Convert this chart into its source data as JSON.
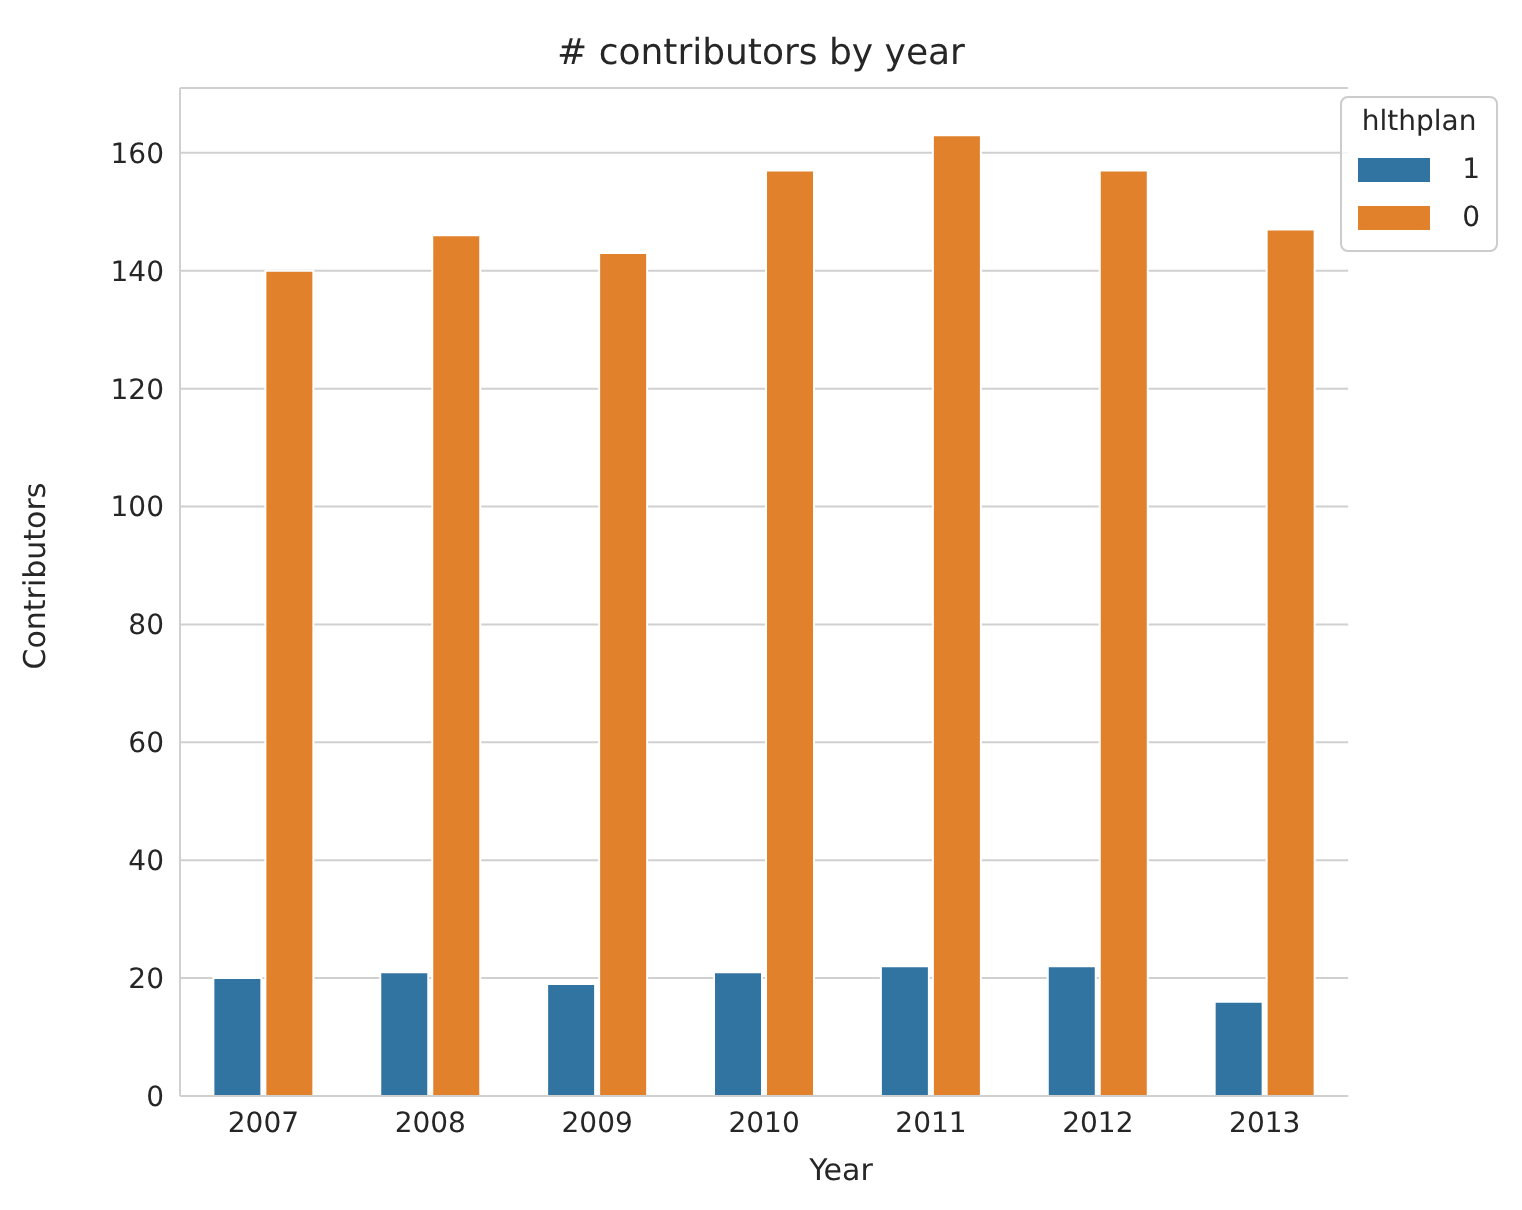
{
  "chart_data": {
    "type": "bar",
    "title": "# contributors by year",
    "xlabel": "Year",
    "ylabel": "Contributors",
    "legend_title": "hlthplan",
    "categories": [
      "2007",
      "2008",
      "2009",
      "2010",
      "2011",
      "2012",
      "2013"
    ],
    "series": [
      {
        "name": "1",
        "color": "#3274a1",
        "values": [
          20,
          21,
          19,
          21,
          22,
          22,
          16
        ]
      },
      {
        "name": "0",
        "color": "#e1812c",
        "values": [
          140,
          146,
          143,
          157,
          163,
          157,
          147
        ]
      }
    ],
    "ylim": [
      0,
      171
    ],
    "yticks": [
      0,
      20,
      40,
      60,
      80,
      100,
      120,
      140,
      160
    ],
    "grid": "y",
    "legend": "top right"
  }
}
